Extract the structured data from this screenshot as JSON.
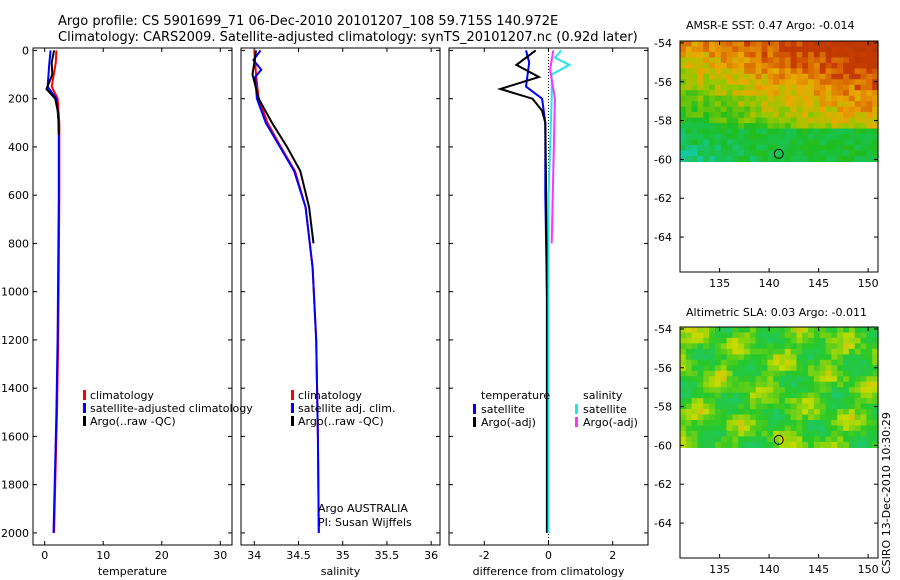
{
  "header": {
    "title_line1": "Argo profile: CS 5901699_71 06-Dec-2010 20101207_108 59.715S 140.972E",
    "title_line2": "Climatology: CARS2009. Satellite-adjusted climatology: synTS_20101207.nc (0.92d later)"
  },
  "credit": "CSIRO 13-Dec-2010 10:30:29",
  "colors": {
    "red": "#ff0000",
    "blue": "#0000ff",
    "black": "#000000",
    "cyan": "#22e5f0",
    "magenta": "#ff33ff"
  },
  "chart_data": [
    {
      "type": "line",
      "id": "temperature",
      "xlabel": "temperature",
      "ylabel": "",
      "xlim": [
        -2,
        32
      ],
      "ylim": [
        2050,
        -10
      ],
      "xticks": [
        0,
        10,
        20,
        30
      ],
      "yticks": [
        0,
        200,
        400,
        600,
        800,
        1000,
        1200,
        1400,
        1600,
        1800,
        2000
      ],
      "series": [
        {
          "name": "climatology",
          "color": "red",
          "x": [
            2.0,
            1.9,
            1.2,
            2.2,
            2.5,
            2.5,
            2.4,
            2.3,
            2.1,
            1.8,
            1.6
          ],
          "y": [
            0,
            50,
            150,
            200,
            300,
            600,
            900,
            1200,
            1500,
            1800,
            2000
          ]
        },
        {
          "name": "satellite-adjusted climatology",
          "color": "blue",
          "x": [
            1.0,
            0.8,
            0.5,
            2.0,
            2.4,
            2.4,
            2.3,
            2.2,
            2.0,
            1.7,
            1.5
          ],
          "y": [
            0,
            50,
            150,
            200,
            300,
            600,
            900,
            1200,
            1500,
            1800,
            2000
          ]
        },
        {
          "name": "Argo(..raw -QC)",
          "color": "black",
          "x": [
            1.6,
            1.2,
            1.3,
            0.3,
            1.8,
            2.3,
            2.4
          ],
          "y": [
            0,
            50,
            100,
            160,
            200,
            260,
            350
          ]
        }
      ],
      "legend": {
        "position": "center-right",
        "entries": [
          "climatology",
          "satellite-adjusted climatology",
          "Argo(..raw -QC)"
        ]
      }
    },
    {
      "type": "line",
      "id": "salinity",
      "xlabel": "salinity",
      "ylabel": "",
      "xlim": [
        33.85,
        36.1
      ],
      "ylim": [
        2050,
        -10
      ],
      "xticks": [
        34,
        34.5,
        35,
        35.5,
        36
      ],
      "xticklabels": [
        "34",
        "34.5",
        "35",
        "35.5",
        "36"
      ],
      "series": [
        {
          "name": "climatology",
          "color": "red",
          "x": [
            34.0,
            34.02,
            34.05,
            34.15,
            34.3,
            34.46,
            34.58,
            34.66,
            34.7,
            34.72,
            34.73
          ],
          "y": [
            0,
            100,
            200,
            300,
            400,
            500,
            650,
            900,
            1200,
            1600,
            2000
          ]
        },
        {
          "name": "satellite adj. clim.",
          "color": "blue",
          "x": [
            34.07,
            33.99,
            34.08,
            34.01,
            34.03,
            34.13,
            34.29,
            34.45,
            34.58,
            34.66,
            34.7,
            34.72,
            34.73
          ],
          "y": [
            0,
            40,
            80,
            110,
            200,
            300,
            400,
            500,
            650,
            900,
            1200,
            1600,
            2000
          ]
        },
        {
          "name": "Argo(..raw -QC)",
          "color": "black",
          "x": [
            34.02,
            34.0,
            33.98,
            34.05,
            34.2,
            34.37,
            34.52,
            34.62,
            34.67
          ],
          "y": [
            0,
            50,
            100,
            200,
            300,
            400,
            500,
            650,
            800
          ]
        }
      ],
      "legend": {
        "position": "center-right",
        "entries": [
          "climatology",
          "satellite adj. clim.",
          "Argo(..raw -QC)"
        ]
      },
      "annotations": [
        "Argo AUSTRALIA",
        "PI: Susan Wijffels"
      ]
    },
    {
      "type": "line",
      "id": "difference",
      "xlabel": "difference from climatology",
      "ylabel": "",
      "xlim": [
        -3.1,
        3.1
      ],
      "ylim": [
        2050,
        -10
      ],
      "xticks": [
        -2,
        0,
        2
      ],
      "series": [
        {
          "name": "temperature satellite",
          "color": "blue",
          "x": [
            -0.7,
            -0.6,
            -0.7,
            -0.2,
            -0.1,
            -0.1,
            -0.05,
            0.0,
            0.0
          ],
          "y": [
            0,
            50,
            150,
            200,
            300,
            600,
            1000,
            1600,
            2000
          ]
        },
        {
          "name": "temperature Argo(-adj)",
          "color": "black",
          "x": [
            -0.4,
            -0.7,
            -1.0,
            -0.3,
            -1.5,
            -0.5,
            -0.2,
            -0.1,
            -0.08,
            -0.05,
            -0.05
          ],
          "y": [
            0,
            30,
            60,
            110,
            160,
            200,
            250,
            300,
            500,
            1000,
            2000
          ]
        },
        {
          "name": "salinity satellite",
          "color": "cyan",
          "x": [
            0.4,
            0.2,
            0.65,
            0.1,
            0.1,
            0.0,
            0.0
          ],
          "y": [
            0,
            30,
            60,
            100,
            200,
            600,
            2000
          ]
        },
        {
          "name": "salinity Argo(-adj)",
          "color": "magenta",
          "x": [
            0.15,
            0.05,
            0.2,
            0.15,
            0.1
          ],
          "y": [
            0,
            80,
            200,
            500,
            800
          ]
        }
      ],
      "legend": {
        "position": "center-right",
        "groups": [
          {
            "title": "temperature",
            "entries": [
              "satellite",
              "Argo(-adj)"
            ]
          },
          {
            "title": "salinity",
            "entries": [
              "satellite",
              "Argo(-adj)"
            ]
          }
        ]
      }
    },
    {
      "type": "heatmap",
      "id": "sst",
      "title": "AMSR-E SST: 0.47 Argo: -0.014",
      "xlim": [
        131,
        151
      ],
      "ylim": [
        -65.8,
        -53.9
      ],
      "xticks": [
        135,
        140,
        145,
        150
      ],
      "yticks": [
        -54,
        -56,
        -58,
        -60,
        -62,
        -64
      ],
      "data_extent_lat": [
        -60.1,
        -53.9
      ],
      "profile": {
        "lon": 140.972,
        "lat": -59.715
      }
    },
    {
      "type": "heatmap",
      "id": "sla",
      "title": "Altimetric SLA: 0.03 Argo: -0.011",
      "xlim": [
        131,
        151
      ],
      "ylim": [
        -65.8,
        -53.9
      ],
      "xticks": [
        135,
        140,
        145,
        150
      ],
      "yticks": [
        -54,
        -56,
        -58,
        -60,
        -62,
        -64
      ],
      "data_extent_lat": [
        -60.1,
        -53.9
      ],
      "profile": {
        "lon": 140.972,
        "lat": -59.715
      }
    }
  ]
}
